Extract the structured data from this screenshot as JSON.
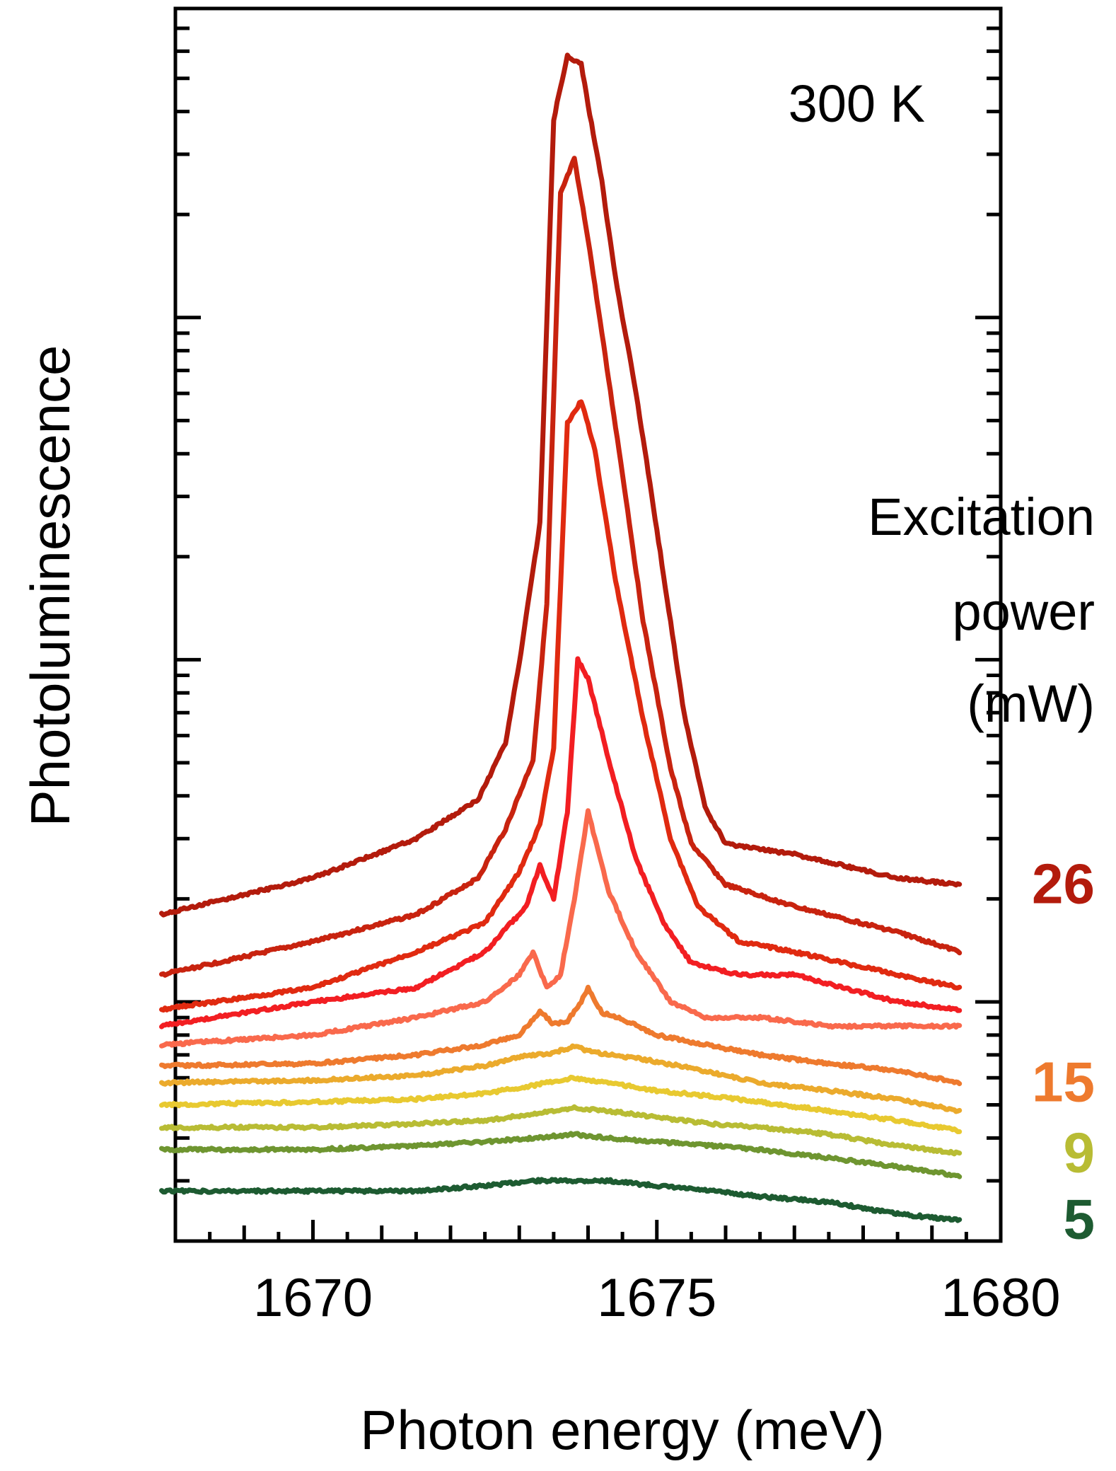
{
  "chart_data": {
    "type": "line",
    "title": "",
    "xlabel": "Photon energy (meV)",
    "ylabel": "Photoluminescence",
    "annotation": "300 K",
    "legend_title": [
      "Excitation",
      "power",
      "(mW)"
    ],
    "x_ticks": [
      "1670",
      "1675",
      "1680"
    ],
    "xlim": [
      1668,
      1680
    ],
    "y_scale": "log",
    "y_tick_labels_shown": false,
    "grid": false,
    "series": [
      {
        "name": "26",
        "color": "#B31B0C",
        "x": [
          1667.8,
          1670,
          1671.5,
          1672.4,
          1672.8,
          1673.0,
          1673.3,
          1673.5,
          1673.7,
          1673.9,
          1674.0,
          1674.2,
          1674.4,
          1674.7,
          1675.0,
          1675.4,
          1675.7,
          1676.0,
          1677,
          1678.5,
          1679.4
        ],
        "y": [
          0.18,
          0.23,
          0.3,
          0.39,
          0.57,
          0.98,
          2.5,
          38,
          58,
          55,
          42,
          25,
          13,
          6.0,
          2.4,
          0.69,
          0.37,
          0.29,
          0.27,
          0.23,
          0.22
        ]
      },
      {
        "name": "",
        "color": "#C8230F",
        "x": [
          1667.8,
          1670,
          1671.5,
          1672.4,
          1672.8,
          1673.2,
          1673.4,
          1673.6,
          1673.8,
          1674.0,
          1674.2,
          1674.5,
          1674.8,
          1675.2,
          1675.5,
          1676.0,
          1677,
          1678.5,
          1679.4
        ],
        "y": [
          0.12,
          0.15,
          0.18,
          0.23,
          0.32,
          0.51,
          1.45,
          23,
          29,
          17,
          9.0,
          3.5,
          1.3,
          0.48,
          0.29,
          0.22,
          0.19,
          0.16,
          0.14
        ]
      },
      {
        "name": "",
        "color": "#E02A10",
        "x": [
          1667.8,
          1670,
          1671.5,
          1672.5,
          1673.0,
          1673.3,
          1673.5,
          1673.7,
          1673.9,
          1674.1,
          1674.4,
          1674.8,
          1675.2,
          1675.6,
          1676.2,
          1677,
          1678.5,
          1679.4
        ],
        "y": [
          0.095,
          0.11,
          0.14,
          0.17,
          0.24,
          0.33,
          0.55,
          4.9,
          5.7,
          4.1,
          1.7,
          0.67,
          0.3,
          0.19,
          0.15,
          0.14,
          0.12,
          0.11
        ]
      },
      {
        "name": "",
        "color": "#F21E22",
        "x": [
          1667.8,
          1670,
          1671.5,
          1672.5,
          1673.1,
          1673.3,
          1673.5,
          1673.7,
          1673.85,
          1674.0,
          1674.3,
          1674.7,
          1675.1,
          1675.5,
          1676.2,
          1677,
          1678.5,
          1679.4
        ],
        "y": [
          0.085,
          0.1,
          0.11,
          0.14,
          0.19,
          0.25,
          0.2,
          0.36,
          1.0,
          0.88,
          0.51,
          0.26,
          0.17,
          0.13,
          0.12,
          0.12,
          0.1,
          0.095
        ]
      },
      {
        "name": "",
        "color": "#F9694C",
        "x": [
          1667.8,
          1670,
          1671.5,
          1672.5,
          1673.0,
          1673.2,
          1673.4,
          1673.6,
          1673.8,
          1674.0,
          1674.3,
          1674.7,
          1675.2,
          1675.7,
          1676.5,
          1677.5,
          1679.4
        ],
        "y": [
          0.075,
          0.08,
          0.09,
          0.1,
          0.12,
          0.14,
          0.11,
          0.12,
          0.2,
          0.36,
          0.21,
          0.14,
          0.1,
          0.09,
          0.09,
          0.085,
          0.085
        ]
      },
      {
        "name": "15",
        "color": "#EE7A2E",
        "x": [
          1667.8,
          1670,
          1671.5,
          1672.5,
          1673.0,
          1673.3,
          1673.5,
          1673.7,
          1673.9,
          1674.0,
          1674.2,
          1674.5,
          1675.0,
          1675.7,
          1676.5,
          1677.5,
          1678.5,
          1679.4
        ],
        "y": [
          0.065,
          0.066,
          0.07,
          0.075,
          0.08,
          0.094,
          0.086,
          0.088,
          0.1,
          0.11,
          0.093,
          0.089,
          0.08,
          0.075,
          0.07,
          0.066,
          0.063,
          0.058
        ]
      },
      {
        "name": "",
        "color": "#EBAA2C",
        "x": [
          1667.8,
          1670,
          1671.5,
          1672.5,
          1673.0,
          1673.5,
          1673.8,
          1674.0,
          1674.3,
          1674.8,
          1675.5,
          1676.5,
          1677.5,
          1678.5,
          1679.4
        ],
        "y": [
          0.058,
          0.059,
          0.061,
          0.065,
          0.069,
          0.071,
          0.074,
          0.072,
          0.07,
          0.068,
          0.064,
          0.058,
          0.055,
          0.052,
          0.048
        ]
      },
      {
        "name": "",
        "color": "#E8C930",
        "x": [
          1667.8,
          1670,
          1671.5,
          1672.5,
          1673.2,
          1673.8,
          1674.3,
          1675.0,
          1675.8,
          1676.5,
          1677.5,
          1678.5,
          1679.4
        ],
        "y": [
          0.05,
          0.051,
          0.052,
          0.054,
          0.057,
          0.06,
          0.058,
          0.055,
          0.053,
          0.051,
          0.048,
          0.045,
          0.042
        ]
      },
      {
        "name": "9",
        "color": "#B8BC34",
        "x": [
          1667.8,
          1670,
          1671.5,
          1672.5,
          1673.2,
          1673.8,
          1674.3,
          1675.0,
          1675.8,
          1676.5,
          1677.5,
          1678.5,
          1679.4
        ],
        "y": [
          0.043,
          0.043,
          0.044,
          0.045,
          0.047,
          0.049,
          0.048,
          0.046,
          0.044,
          0.043,
          0.041,
          0.038,
          0.036
        ]
      },
      {
        "name": "",
        "color": "#6E9530",
        "x": [
          1667.8,
          1670,
          1671.5,
          1672.5,
          1673.2,
          1673.8,
          1674.3,
          1675.0,
          1675.8,
          1676.5,
          1677.5,
          1678.5,
          1679.4
        ],
        "y": [
          0.037,
          0.037,
          0.038,
          0.039,
          0.04,
          0.041,
          0.04,
          0.039,
          0.038,
          0.037,
          0.035,
          0.033,
          0.031
        ]
      },
      {
        "name": "5",
        "color": "#1D5B31",
        "x": [
          1667.8,
          1670,
          1671.5,
          1672.5,
          1673.2,
          1673.8,
          1674.3,
          1675.0,
          1675.8,
          1676.5,
          1677.5,
          1678.5,
          1679.4
        ],
        "y": [
          0.028,
          0.028,
          0.028,
          0.029,
          0.03,
          0.03,
          0.03,
          0.029,
          0.028,
          0.027,
          0.026,
          0.024,
          0.023
        ]
      }
    ]
  }
}
